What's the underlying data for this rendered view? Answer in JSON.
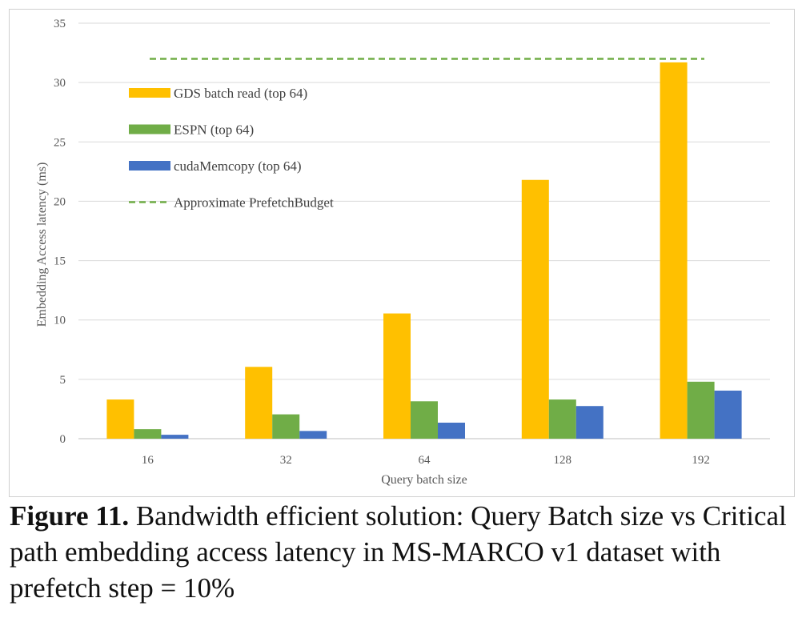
{
  "chart_data": {
    "type": "bar",
    "title": "",
    "xlabel": "Query batch size",
    "ylabel": "Embedding Access latency (ms)",
    "ylim": [
      0,
      35
    ],
    "yticks": [
      0,
      5,
      10,
      15,
      20,
      25,
      30,
      35
    ],
    "grid": true,
    "categories": [
      "16",
      "32",
      "64",
      "128",
      "192"
    ],
    "series": [
      {
        "name": "GDS batch read (top 64)",
        "color": "#FFC000",
        "values": [
          3.3,
          6.05,
          10.55,
          21.8,
          31.7
        ]
      },
      {
        "name": "ESPN (top 64)",
        "color": "#70AD47",
        "values": [
          0.8,
          2.05,
          3.15,
          3.3,
          4.8
        ]
      },
      {
        "name": "cudaMemcopy (top 64)",
        "color": "#4472C4",
        "values": [
          0.33,
          0.65,
          1.35,
          2.75,
          4.05
        ]
      }
    ],
    "reference_line": {
      "name": "Approximate PrefetchBudget",
      "value": 32,
      "color": "#70AD47",
      "style": "dashed"
    },
    "legend_position": "top-left"
  },
  "caption": {
    "label": "Figure 11.",
    "text": " Bandwidth efficient solution: Query Batch size vs Critical path embedding access latency in MS-MARCO v1 dataset with prefetch step = 10%"
  }
}
